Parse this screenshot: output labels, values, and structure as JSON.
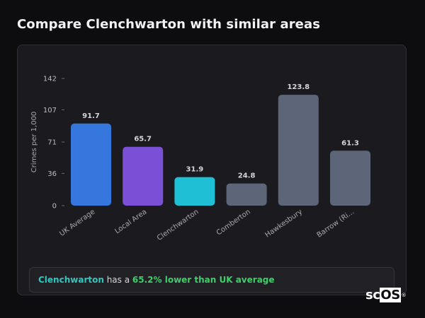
{
  "title": "Compare Clenchwarton with similar areas",
  "chart_data": {
    "type": "bar",
    "ylabel": "Crimes per 1,000",
    "ylim": [
      0,
      142
    ],
    "yticks": [
      0,
      36,
      71,
      107,
      142
    ],
    "categories": [
      "UK Average",
      "Local Area",
      "Clenchwarton",
      "Comberton",
      "Hawkesbury",
      "Barrow (Ri..."
    ],
    "values": [
      91.7,
      65.7,
      31.9,
      24.8,
      123.8,
      61.3
    ],
    "value_labels": [
      "91.7",
      "65.7",
      "31.9",
      "24.8",
      "123.8",
      "61.3"
    ],
    "colors": [
      "#3577dc",
      "#7b4fd6",
      "#1fbfd6",
      "#5c6678",
      "#5c6678",
      "#5c6678"
    ],
    "grid": false
  },
  "summary": {
    "place": "Clenchwarton",
    "middle": " has a ",
    "stat": "65.2% lower than UK average"
  },
  "logo": {
    "part1": "sc",
    "part2": "OS",
    "mark": "®"
  }
}
